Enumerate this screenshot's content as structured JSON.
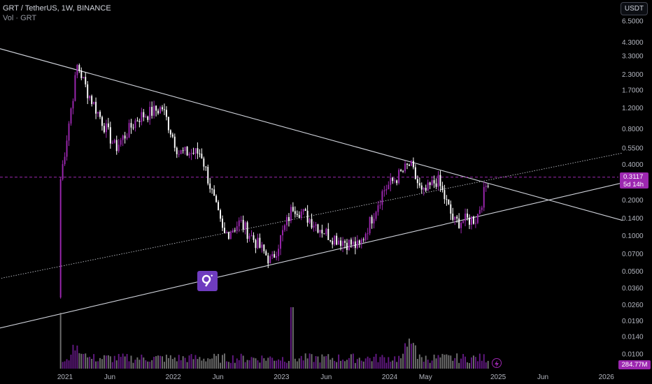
{
  "header": {
    "symbol_line": "GRT / TetherUS, 1W, BINANCE",
    "volume_line": "Vol · GRT"
  },
  "currency_button": "USDT",
  "logo_icon": "the-graph-logo-icon",
  "flash_icon": "lightning-icon",
  "colors": {
    "background": "#000000",
    "up": "#9c27b0",
    "down": "#ffffff",
    "trendline": "#d1d4dc",
    "last_price": "#9c27b0"
  },
  "chart_data": {
    "type": "candlestick",
    "y_scale": "log",
    "y_ticks": [
      "6.5000",
      "4.3000",
      "3.3000",
      "2.3000",
      "1.7000",
      "1.2000",
      "0.8000",
      "0.5500",
      "0.4000",
      "0.2000",
      "0.1400",
      "0.1000",
      "0.0700",
      "0.0500",
      "0.0360",
      "0.0260",
      "0.0190",
      "0.0140",
      "0.0100"
    ],
    "y_tick_values": [
      6.5,
      4.3,
      3.3,
      2.3,
      1.7,
      1.2,
      0.8,
      0.55,
      0.4,
      0.2,
      0.14,
      0.1,
      0.07,
      0.05,
      0.036,
      0.026,
      0.019,
      0.014,
      0.01
    ],
    "x_ticks": [
      {
        "label": "2021",
        "date": "2021-01-01"
      },
      {
        "label": "Jun",
        "date": "2021-06-01"
      },
      {
        "label": "2022",
        "date": "2022-01-01"
      },
      {
        "label": "Jun",
        "date": "2022-06-01"
      },
      {
        "label": "2023",
        "date": "2023-01-01"
      },
      {
        "label": "Jun",
        "date": "2023-06-01"
      },
      {
        "label": "2024",
        "date": "2024-01-01"
      },
      {
        "label": "May",
        "date": "2024-05-01"
      },
      {
        "label": "2025",
        "date": "2025-01-01"
      },
      {
        "label": "Jun",
        "date": "2025-06-01"
      },
      {
        "label": "2026",
        "date": "2026-01-01"
      }
    ],
    "last_price": {
      "value": "0.3117",
      "countdown": "5d 14h"
    },
    "last_volume": "284.77M",
    "key_points": [
      {
        "date": "2020-12-17",
        "close": 0.3
      },
      {
        "date": "2021-02-12",
        "close": 2.8
      },
      {
        "date": "2021-03-15",
        "close": 1.7
      },
      {
        "date": "2021-06-20",
        "close": 0.55
      },
      {
        "date": "2021-09-05",
        "close": 1.0
      },
      {
        "date": "2021-11-25",
        "close": 1.2
      },
      {
        "date": "2022-01-20",
        "close": 0.5
      },
      {
        "date": "2022-04-05",
        "close": 0.5
      },
      {
        "date": "2022-06-20",
        "close": 0.1
      },
      {
        "date": "2022-08-15",
        "close": 0.13
      },
      {
        "date": "2022-11-28",
        "close": 0.06
      },
      {
        "date": "2023-02-10",
        "close": 0.18
      },
      {
        "date": "2023-06-12",
        "close": 0.1
      },
      {
        "date": "2023-09-20",
        "close": 0.08
      },
      {
        "date": "2023-12-10",
        "close": 0.24
      },
      {
        "date": "2024-03-10",
        "close": 0.4
      },
      {
        "date": "2024-04-20",
        "close": 0.22
      },
      {
        "date": "2024-06-10",
        "close": 0.3
      },
      {
        "date": "2024-08-05",
        "close": 0.13
      },
      {
        "date": "2024-10-20",
        "close": 0.14
      },
      {
        "date": "2024-11-30",
        "close": 0.3117
      }
    ],
    "volume_peak": {
      "date": "2023-02-05",
      "relative": 1.0
    }
  }
}
